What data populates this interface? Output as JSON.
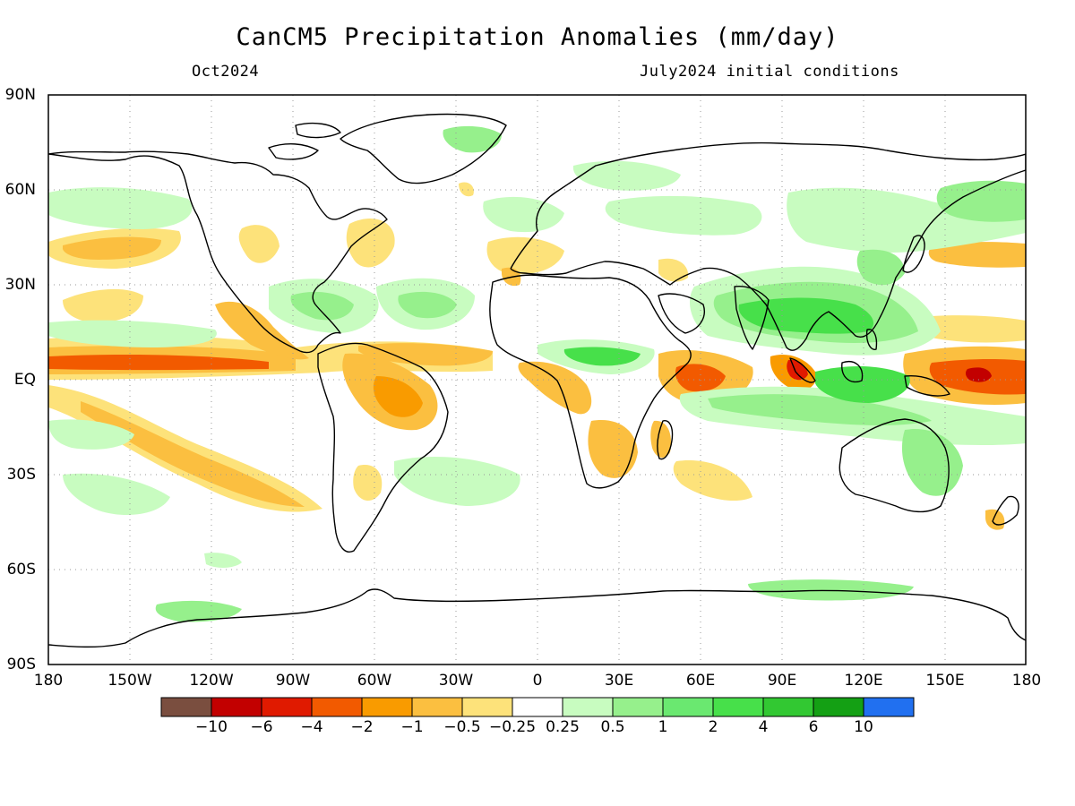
{
  "title": "CanCM5 Precipitation Anomalies (mm/day)",
  "subtitle_left": "Oct2024",
  "subtitle_right": "July2024 initial conditions",
  "axes": {
    "lat_ticks": [
      "90N",
      "60N",
      "30N",
      "EQ",
      "30S",
      "60S",
      "90S"
    ],
    "lon_ticks": [
      "180",
      "150W",
      "120W",
      "90W",
      "60W",
      "30W",
      "0",
      "30E",
      "60E",
      "90E",
      "120E",
      "150E",
      "180"
    ],
    "lon_range": [
      -180,
      180
    ],
    "lat_range": [
      -90,
      90
    ],
    "gridlines": "dotted, every 30 degrees"
  },
  "colorbar": {
    "labels": [
      "-10",
      "-6",
      "-4",
      "-2",
      "-1",
      "-0.5",
      "-0.25",
      "0.25",
      "0.5",
      "1",
      "2",
      "4",
      "6",
      "10"
    ],
    "colors": [
      "#7a4e3f",
      "#c20000",
      "#e01a00",
      "#f25a00",
      "#f99b00",
      "#fbbf40",
      "#fde27a",
      "#ffffff",
      "#c8fcc0",
      "#96f08c",
      "#6ae870",
      "#47e04a",
      "#32c832",
      "#14a014",
      "#2170f0"
    ]
  },
  "legend_colors": {
    "dry": "#f25a00",
    "wet": "#47e04a",
    "coast": "#000000",
    "grid": "#999999"
  }
}
